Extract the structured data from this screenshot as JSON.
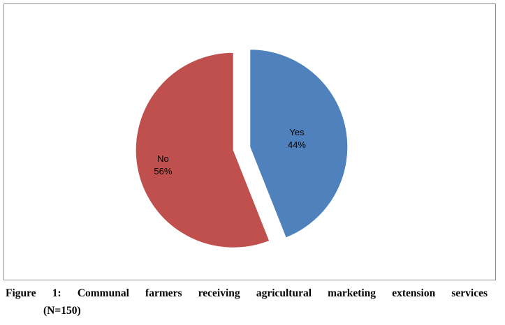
{
  "chart_data": {
    "type": "pie",
    "title": "",
    "slices": [
      {
        "label": "Yes",
        "value": 44,
        "percent_label": "44%",
        "color": "#4f81bd",
        "exploded": true
      },
      {
        "label": "No",
        "value": 56,
        "percent_label": "56%",
        "color": "#c0504d",
        "exploded": true
      }
    ],
    "legend": "none"
  },
  "caption": {
    "line1": "Figure 1: Communal farmers receiving agricultural marketing extension services",
    "line2": "(N=150)"
  }
}
